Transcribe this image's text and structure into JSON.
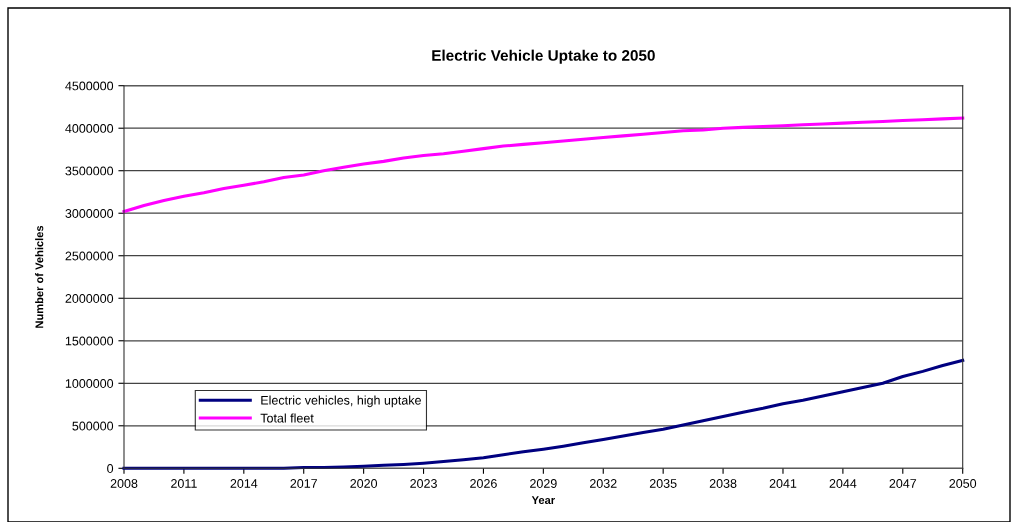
{
  "chart_data": {
    "type": "line",
    "title": "Electric Vehicle Uptake to 2050",
    "xlabel": "Year",
    "ylabel": "Number of Vehicles",
    "x": [
      2008,
      2009,
      2010,
      2011,
      2012,
      2013,
      2014,
      2015,
      2016,
      2017,
      2018,
      2019,
      2020,
      2021,
      2022,
      2023,
      2024,
      2025,
      2026,
      2027,
      2028,
      2029,
      2030,
      2031,
      2032,
      2033,
      2034,
      2035,
      2036,
      2037,
      2038,
      2039,
      2040,
      2041,
      2042,
      2043,
      2044,
      2045,
      2046,
      2047,
      2048,
      2049,
      2050
    ],
    "series": [
      {
        "name": "Electric vehicles, high uptake",
        "color": "#000080",
        "values": [
          0,
          0,
          0,
          0,
          0,
          0,
          0,
          0,
          0,
          10000,
          10000,
          15000,
          25000,
          35000,
          45000,
          60000,
          80000,
          100000,
          125000,
          160000,
          195000,
          225000,
          260000,
          300000,
          340000,
          380000,
          420000,
          460000,
          510000,
          560000,
          610000,
          660000,
          705000,
          760000,
          800000,
          850000,
          900000,
          950000,
          1000000,
          1080000,
          1140000,
          1210000,
          1270000
        ]
      },
      {
        "name": "Total fleet",
        "color": "#ff00ff",
        "values": [
          3020000,
          3090000,
          3150000,
          3200000,
          3240000,
          3290000,
          3330000,
          3370000,
          3420000,
          3450000,
          3500000,
          3540000,
          3580000,
          3610000,
          3650000,
          3680000,
          3700000,
          3730000,
          3760000,
          3790000,
          3810000,
          3830000,
          3850000,
          3870000,
          3890000,
          3910000,
          3930000,
          3950000,
          3970000,
          3980000,
          4000000,
          4010000,
          4020000,
          4030000,
          4040000,
          4050000,
          4060000,
          4070000,
          4080000,
          4090000,
          4100000,
          4110000,
          4120000
        ]
      }
    ],
    "xlim": [
      2008,
      2050
    ],
    "xticks": [
      2008,
      2011,
      2014,
      2017,
      2020,
      2023,
      2026,
      2029,
      2032,
      2035,
      2038,
      2041,
      2044,
      2047,
      2050
    ],
    "ylim": [
      0,
      4500000
    ],
    "yticks": [
      0,
      500000,
      1000000,
      1500000,
      2000000,
      2500000,
      3000000,
      3500000,
      4000000,
      4500000
    ],
    "grid": "y",
    "legend": "bottom left",
    "marker": "none",
    "line_style": "solid"
  }
}
